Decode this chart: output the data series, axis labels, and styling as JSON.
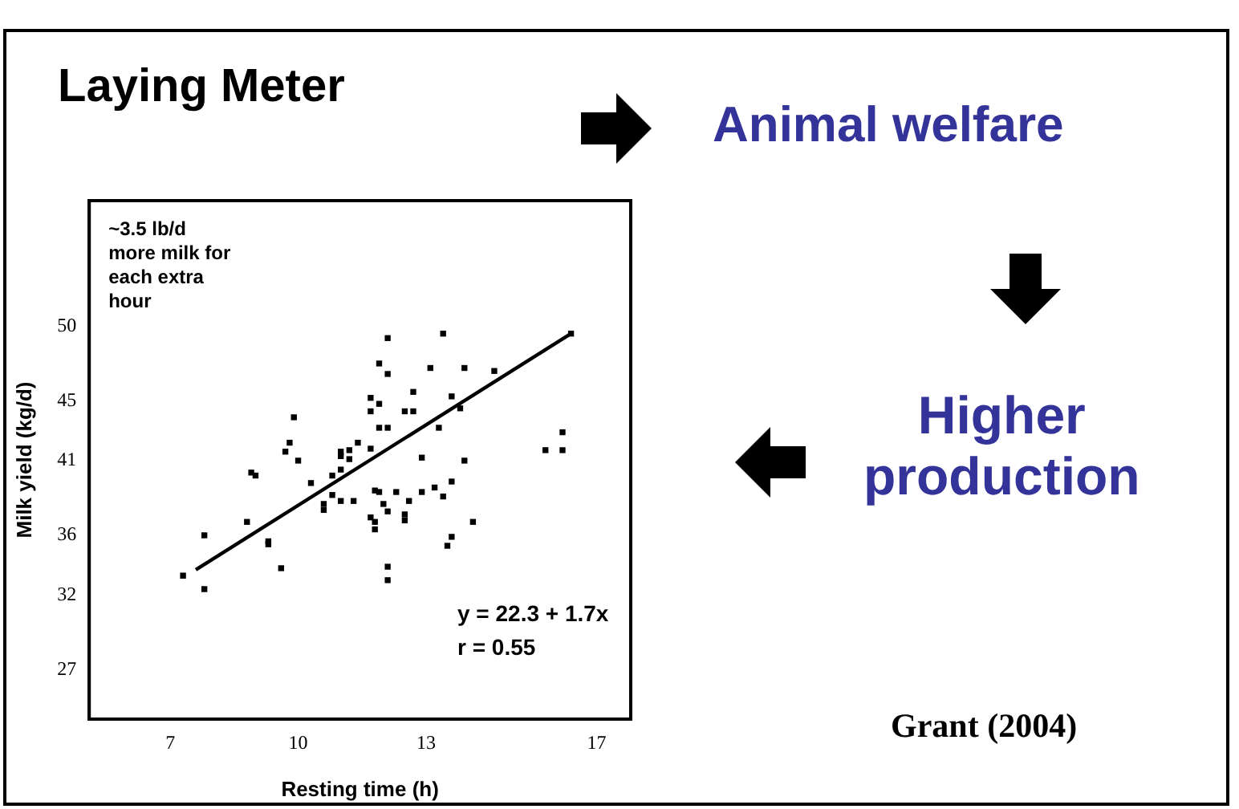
{
  "chart_data": {
    "type": "scatter",
    "xlabel": "Resting time (h)",
    "ylabel": "Milk yield (kg/d)",
    "xlim": [
      5.1,
      17.8
    ],
    "xticks": [
      7,
      10,
      13,
      17
    ],
    "ylim": [
      23.7,
      58.4
    ],
    "yticks": [
      27,
      32,
      36,
      41,
      45,
      50
    ],
    "marker": "square",
    "series": [
      {
        "type": "scatter",
        "color": "#000000",
        "x": [
          7.3,
          7.8,
          7.8,
          8.8,
          8.9,
          9.0,
          9.3,
          9.3,
          9.6,
          9.7,
          9.8,
          9.9,
          10.0,
          10.3,
          10.6,
          10.6,
          10.8,
          10.8,
          11.0,
          11.0,
          11.0,
          11.0,
          11.3,
          11.2,
          11.4,
          11.2,
          11.7,
          11.7,
          11.7,
          11.9,
          11.9,
          12.1,
          12.1,
          11.9,
          12.1,
          11.8,
          11.9,
          11.7,
          11.8,
          11.8,
          12.0,
          12.1,
          12.1,
          12.1,
          12.3,
          12.5,
          12.5,
          12.6,
          12.7,
          12.5,
          12.7,
          12.9,
          12.9,
          13.1,
          13.2,
          13.3,
          13.4,
          13.4,
          13.6,
          13.6,
          13.5,
          13.6,
          13.9,
          13.9,
          14.1,
          13.8,
          14.6,
          15.8,
          16.2,
          16.2,
          16.4
        ],
        "values": [
          33.3,
          32.4,
          36.0,
          36.9,
          40.2,
          40.0,
          35.6,
          35.4,
          33.8,
          41.6,
          42.2,
          43.9,
          41.0,
          39.5,
          38.1,
          37.7,
          40.0,
          38.7,
          41.6,
          41.3,
          40.4,
          38.3,
          38.3,
          41.7,
          42.2,
          41.1,
          41.8,
          45.2,
          44.3,
          44.8,
          47.5,
          46.8,
          49.2,
          43.2,
          43.2,
          39.0,
          38.9,
          37.2,
          36.9,
          36.4,
          38.1,
          37.6,
          33.9,
          33.0,
          38.9,
          37.4,
          37.0,
          38.3,
          45.6,
          44.3,
          44.3,
          41.2,
          38.9,
          47.2,
          39.2,
          43.2,
          49.5,
          38.6,
          45.3,
          39.6,
          35.3,
          35.9,
          47.2,
          41.0,
          36.9,
          44.5,
          47.0,
          41.7,
          42.9,
          41.7,
          49.5
        ]
      },
      {
        "type": "line",
        "color": "#000000",
        "marker": "none",
        "x": [
          7.6,
          16.4
        ],
        "values": [
          33.7,
          49.5
        ]
      }
    ],
    "annotations": [
      "~3.5 lb/d\nmore milk for\neach extra\nhour",
      "y = 22.3 + 1.7x\nr = 0.55",
      "Laying Meter",
      "Animal welfare",
      "Higher\nproduction",
      "Grant (2004)"
    ]
  }
}
